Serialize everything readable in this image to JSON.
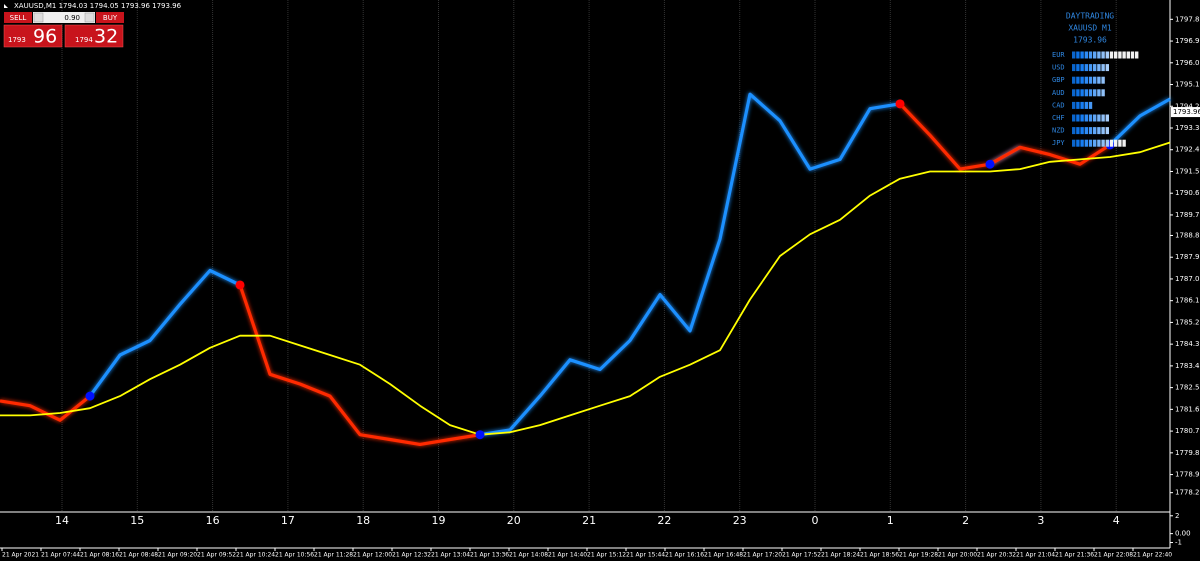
{
  "ui": {
    "header": "XAUUSD,M1  1794.03 1794.05 1793.96 1793.96",
    "sell": "SELL",
    "lot": "0.90",
    "buy": "BUY",
    "sell_big": "1793",
    "sell_pips": "96",
    "buy_big": "1794",
    "buy_pips": "32"
  },
  "chart_data": {
    "type": "line",
    "title": "DAYTRADING",
    "subtitle": "XAUUSD M1",
    "current_price": 1793.96,
    "series": [
      {
        "color": "#1e90ff",
        "values": [
          null,
          null,
          null,
          1782.2,
          1783.9,
          1784.5,
          1786.0,
          1787.4,
          1786.8,
          null,
          null,
          null,
          null,
          null,
          null,
          null,
          1780.6,
          1780.8,
          1782.2,
          1783.7,
          1783.3,
          1784.5,
          1786.4,
          1784.9,
          1788.7,
          1794.7,
          1793.6,
          1791.6,
          1792.0,
          1794.1,
          1794.3,
          null,
          null,
          1791.8,
          1792.5,
          null,
          null,
          1792.6,
          1793.8,
          1794.5
        ]
      },
      {
        "color": "#ff2a00",
        "values": [
          1782.0,
          1781.8,
          1781.2,
          1782.2,
          null,
          null,
          null,
          null,
          1786.8,
          1783.1,
          1782.7,
          1782.2,
          1780.6,
          1780.4,
          1780.2,
          1780.4,
          1780.6,
          null,
          null,
          null,
          null,
          null,
          null,
          null,
          null,
          null,
          null,
          null,
          null,
          null,
          1794.3,
          1793.0,
          1791.6,
          1791.8,
          1792.5,
          1792.2,
          1791.8,
          1792.6,
          null,
          null
        ]
      },
      {
        "color": "#ffff00",
        "values": [
          1781.4,
          1781.4,
          1781.5,
          1781.7,
          1782.2,
          1782.9,
          1783.5,
          1784.2,
          1784.7,
          1784.7,
          1784.3,
          1783.9,
          1783.5,
          1782.7,
          1781.8,
          1781.0,
          1780.6,
          1780.7,
          1781.0,
          1781.4,
          1781.8,
          1782.2,
          1783.0,
          1783.5,
          1784.1,
          1786.2,
          1788.0,
          1788.9,
          1789.5,
          1790.5,
          1791.2,
          1791.5,
          1791.5,
          1791.5,
          1791.6,
          1791.9,
          1792.0,
          1792.1,
          1792.3,
          1792.7
        ]
      }
    ],
    "ylim": [
      1777.4,
      1798.6
    ],
    "yticks": [
      {
        "value": 1797.8,
        "label": "1797.80"
      },
      {
        "value": 1796.9,
        "label": "1796.90"
      },
      {
        "value": 1796,
        "label": "1796.00"
      },
      {
        "value": 1795.1,
        "label": "1795.10"
      },
      {
        "value": 1794.2,
        "label": "1794.20"
      },
      {
        "value": 1793.3,
        "label": "1793.30"
      },
      {
        "value": 1792.4,
        "label": "1792.40"
      },
      {
        "value": 1791.5,
        "label": "1791.50"
      },
      {
        "value": 1790.6,
        "label": "1790.60"
      },
      {
        "value": 1789.7,
        "label": "1789.70"
      },
      1788.85,
      1787.95,
      1787.05,
      1786.15,
      1785.25,
      1784.35,
      1783.45,
      1782.55,
      1781.65,
      1780.75,
      1779.85,
      1778.95,
      {
        "value": 1778.2,
        "label": "1778.20"
      }
    ],
    "sub_ylim": [
      -1.5,
      2.2
    ],
    "sub_yticks": [
      2,
      {
        "value": 0,
        "label": "0.00"
      },
      -1
    ],
    "hour_labels": [
      "14",
      "15",
      "16",
      "17",
      "18",
      "19",
      "20",
      "21",
      "22",
      "23",
      "0",
      "1",
      "2",
      "3",
      "4"
    ],
    "time_labels": [
      "21 Apr 2021",
      "21 Apr 07:44",
      "21 Apr 08:16",
      "21 Apr 08:48",
      "21 Apr 09:20",
      "21 Apr 09:52",
      "21 Apr 10:24",
      "21 Apr 10:56",
      "21 Apr 11:28",
      "21 Apr 12:00",
      "21 Apr 12:32",
      "21 Apr 13:04",
      "21 Apr 13:36",
      "21 Apr 14:08",
      "21 Apr 14:40",
      "21 Apr 15:12",
      "21 Apr 15:44",
      "21 Apr 16:16",
      "21 Apr 16:48",
      "21 Apr 17:20",
      "21 Apr 17:52",
      "21 Apr 18:24",
      "21 Apr 18:56",
      "21 Apr 19:28",
      "21 Apr 20:00",
      "21 Apr 20:32",
      "21 Apr 21:04",
      "21 Apr 21:36",
      "21 Apr 22:08",
      "21 Apr 22:40"
    ],
    "strength": {
      "currencies": [
        "EUR",
        "USD",
        "GBP",
        "AUD",
        "CAD",
        "CHF",
        "NZD",
        "JPY"
      ],
      "values": [
        16,
        9,
        8,
        8,
        5,
        9,
        9,
        13
      ]
    }
  }
}
